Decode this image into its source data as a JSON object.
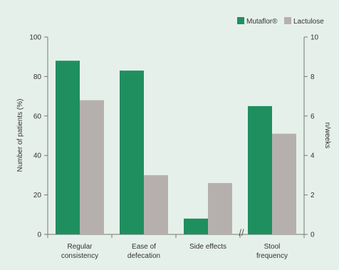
{
  "chart_data": {
    "type": "bar",
    "categories": [
      {
        "lines": [
          "Regular",
          "consistency"
        ]
      },
      {
        "lines": [
          "Ease of",
          "defecation"
        ]
      },
      {
        "lines": [
          "Side effects"
        ]
      },
      {
        "lines": [
          "Stool",
          "frequency"
        ]
      }
    ],
    "series": [
      {
        "name": "Mutaflor®",
        "color": "#1f8f5f",
        "values": [
          88,
          83,
          8,
          6.5
        ]
      },
      {
        "name": "Lactulose",
        "color": "#b5b0ae",
        "values": [
          68,
          30,
          26,
          5.1
        ]
      }
    ],
    "axes": {
      "left": {
        "label": "Number of patients (%)",
        "min": 0,
        "max": 100,
        "ticks": [
          0,
          20,
          40,
          60,
          80,
          100
        ]
      },
      "right": {
        "label": "n/weeks",
        "min": 0,
        "max": 10,
        "ticks": [
          0,
          2,
          4,
          6,
          8,
          10
        ]
      }
    },
    "axis_assignment": [
      "left",
      "left",
      "left",
      "right"
    ],
    "break_marker": "//",
    "legend_position": "top-right",
    "grid": false,
    "colors": {
      "background": "#e6f0ea",
      "axis": "#777777",
      "text": "#333333"
    }
  }
}
